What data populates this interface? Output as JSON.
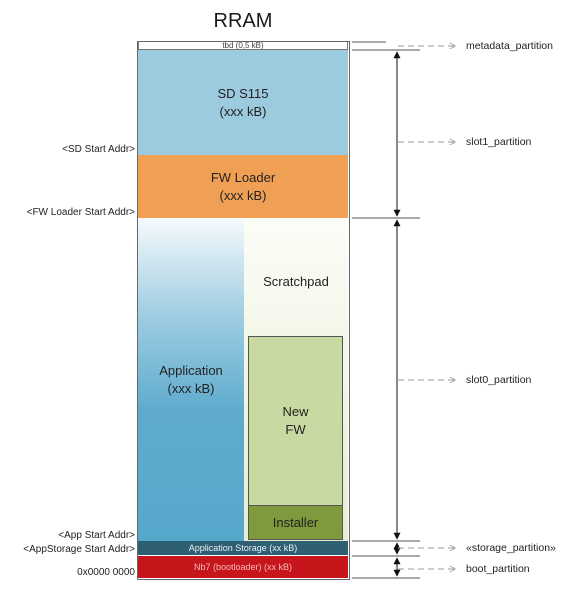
{
  "title": "RRAM",
  "blocks": {
    "metadata": "tbd (0,5 kB)",
    "sd_name": "SD S115",
    "sd_size": "(xxx kB)",
    "fwloader_name": "FW Loader",
    "fwloader_size": "(xxx kB)",
    "application_name": "Application",
    "application_size": "(xxx kB)",
    "scratchpad": "Scratchpad",
    "newfw_line1": "New",
    "newfw_line2": "FW",
    "installer": "Installer",
    "app_storage": "Application Storage (xx kB)",
    "bootloader": "Nb7 (bootloader) (xx kB)"
  },
  "addresses": {
    "sd_start": "<SD Start Addr>",
    "fwloader_start": "<FW Loader Start Addr>",
    "app_start": "<App Start Addr>",
    "appstorage_start": "<AppStorage Start Addr>",
    "zero": "0x0000 0000"
  },
  "partitions": {
    "metadata": "metadata_partition",
    "slot1": "slot1_partition",
    "slot0": "slot0_partition",
    "storage": "«storage_partition»",
    "boot": "boot_partition"
  },
  "colors": {
    "sd": "#9ccbe0",
    "fwloader": "#f0a055",
    "app_top": "#f6fafc",
    "app_bottom": "#56a8cb",
    "scratch_top": "#fbfdf7",
    "scratch_bottom": "#e6edd4",
    "newfw": "#c9d9a2",
    "installer": "#7f9a3c",
    "storage": "#2f5f72",
    "boot": "#c6161b"
  }
}
